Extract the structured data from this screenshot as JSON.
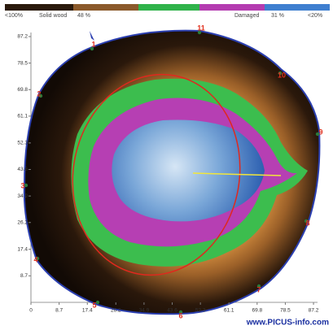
{
  "legend": {
    "labels": [
      "<100%",
      "Solid wood",
      "48 %",
      "Damaged",
      "31 %",
      "<20%"
    ]
  },
  "axes": {
    "x_ticks": [
      0,
      8.7,
      17.4,
      26.2,
      34.9,
      43.6,
      52.3,
      61.1,
      69.8,
      78.5,
      87.2
    ],
    "y_ticks": [
      8.7,
      17.4,
      26.2,
      34.9,
      43.6,
      52.3,
      61.1,
      69.8,
      78.5,
      87.2
    ]
  },
  "points": [
    "1",
    "2",
    "3",
    "4",
    "5",
    "6",
    "7",
    "8",
    "9",
    "10",
    "11"
  ],
  "footer": "www.PICUS-info.com"
}
